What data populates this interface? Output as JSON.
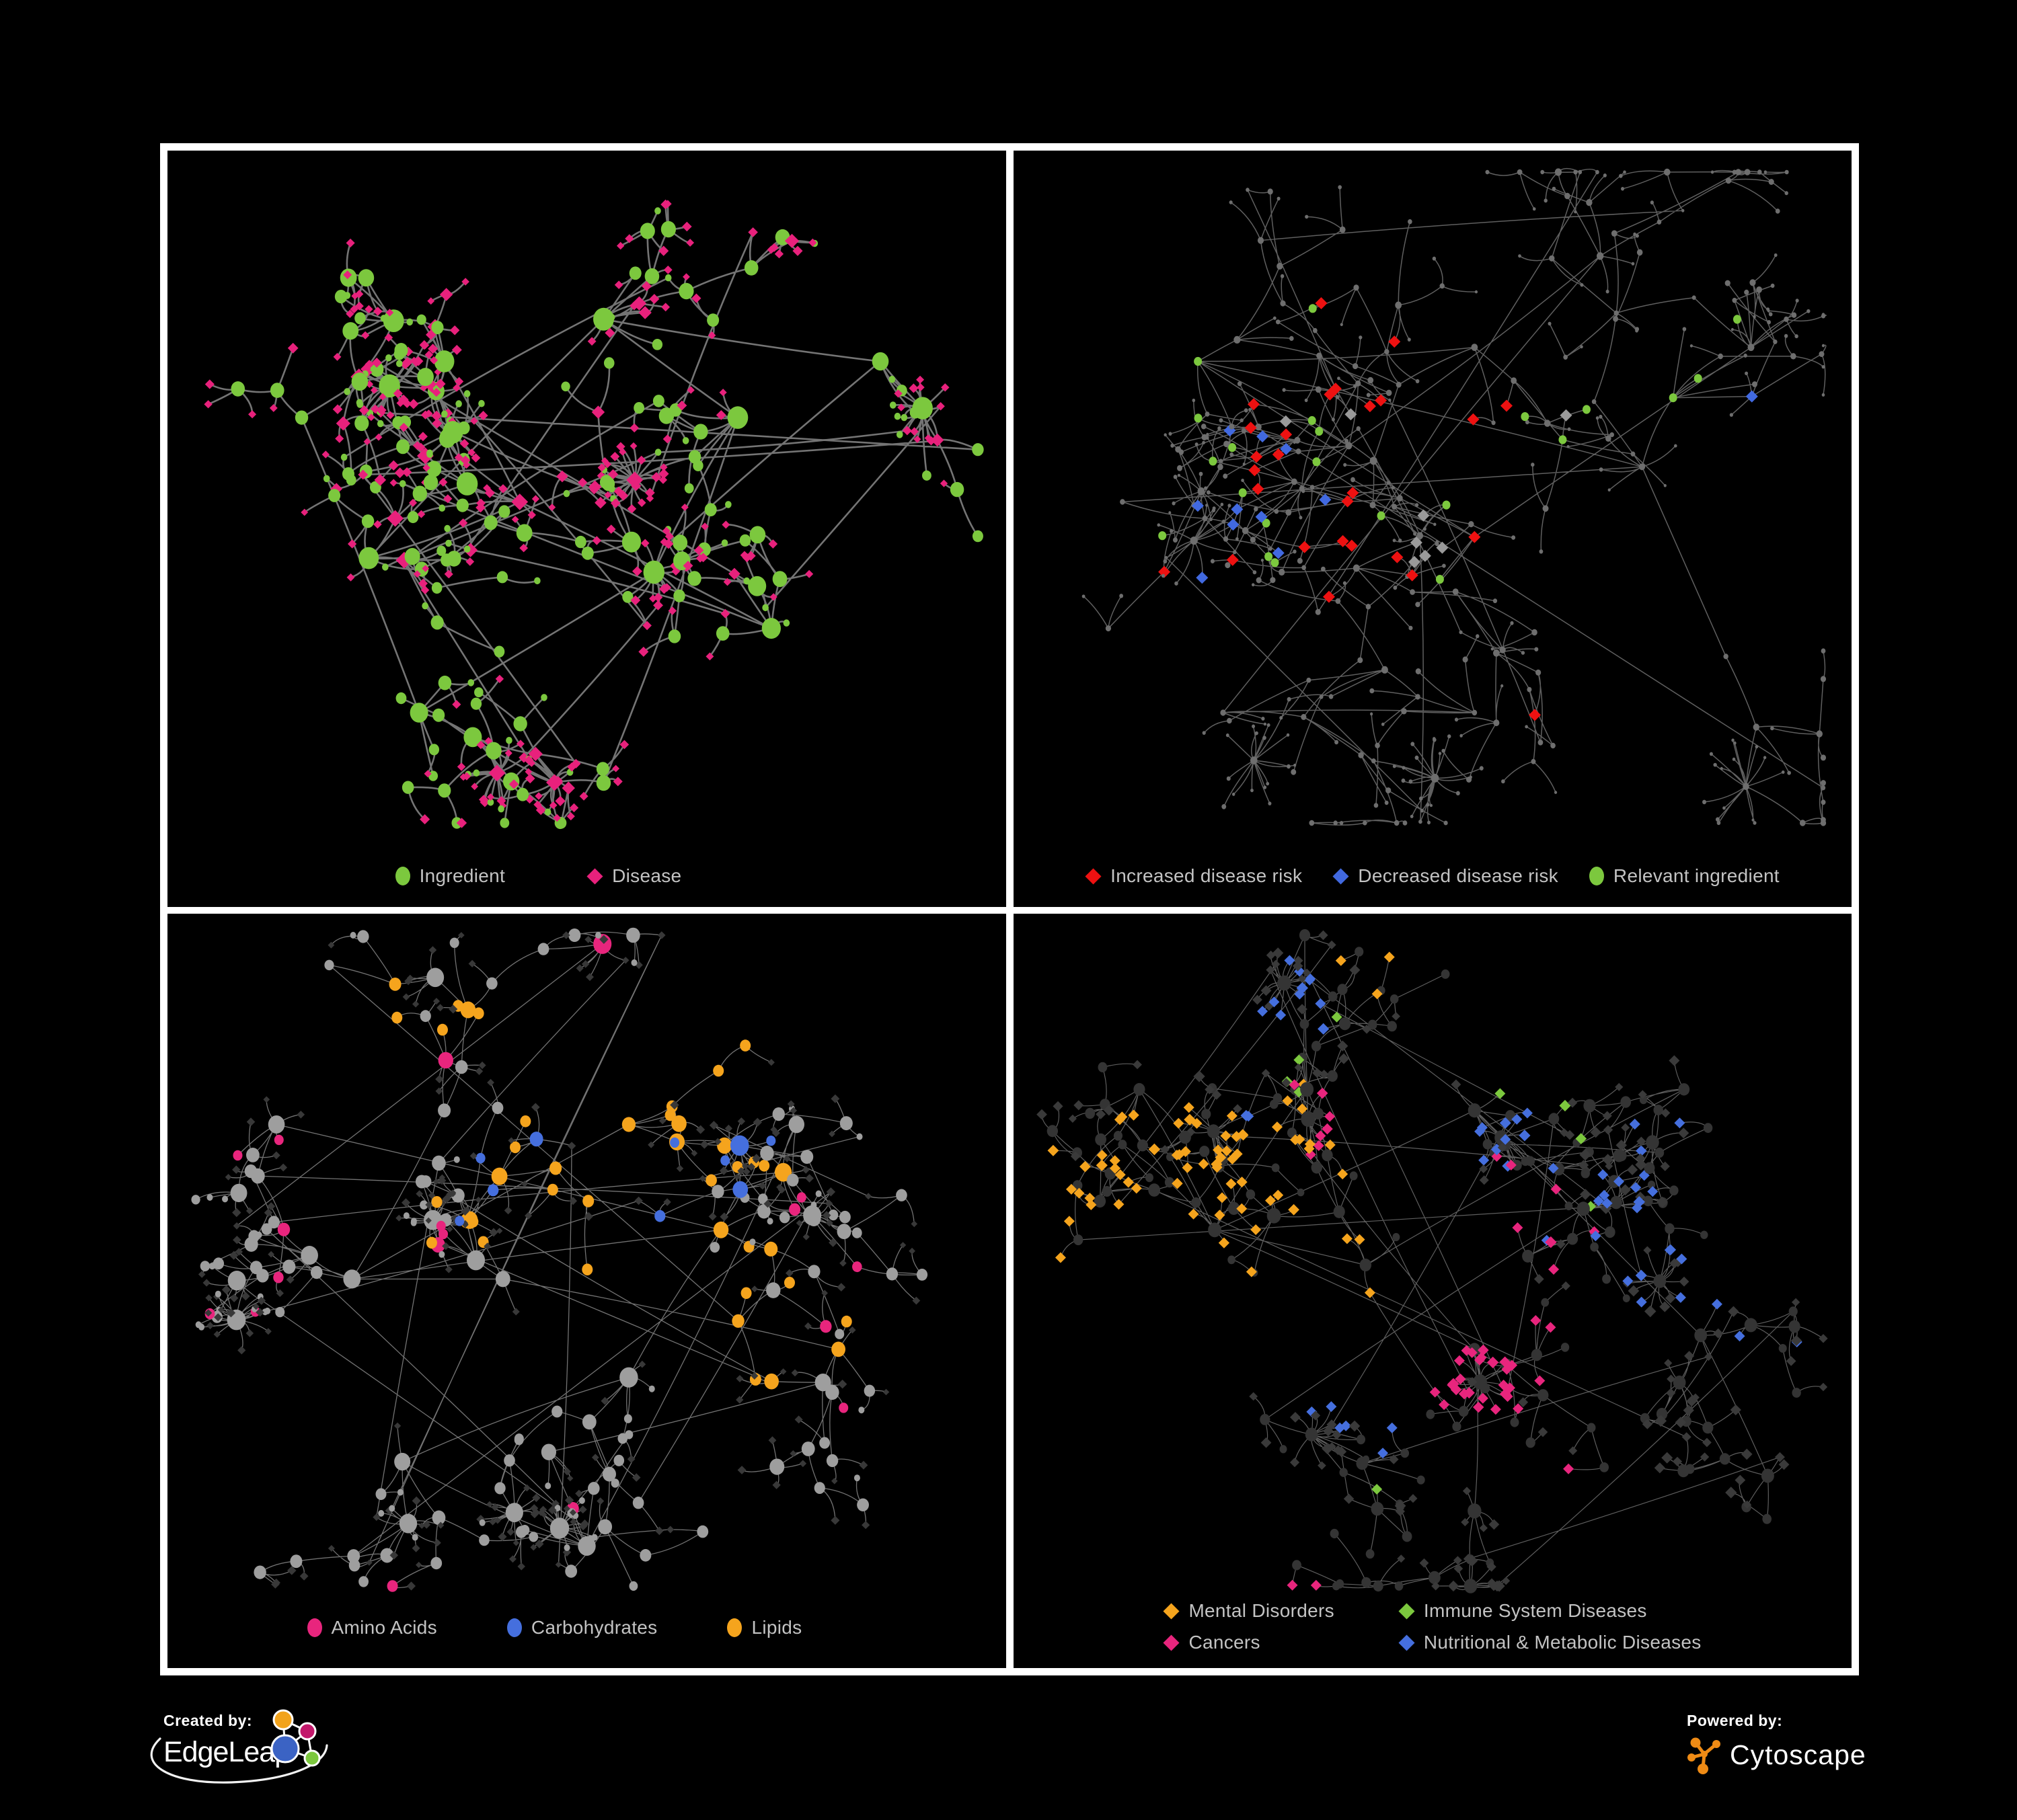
{
  "page": {
    "background": "#000000",
    "frame_border": "#ffffff"
  },
  "footer": {
    "created_label": "Created by:",
    "created_brand": "EdgeLeap",
    "powered_label": "Powered by:",
    "powered_brand": "Cytoscape",
    "cytoscape_orange": "#EF8B15",
    "edgeleap_logo_colors": {
      "orange": "#F2A31C",
      "magenta": "#C2186B",
      "blue": "#3B63C4",
      "green": "#7CC83E",
      "stroke": "#ffffff"
    }
  },
  "panels": [
    {
      "name": "ingredient-disease-network",
      "legend": {
        "items": [
          {
            "icon": "ellipse",
            "color": "#7CC83E",
            "label": "Ingredient"
          },
          {
            "icon": "diamond",
            "color": "#E8217C",
            "label": "Disease"
          }
        ]
      },
      "network": {
        "seed": 11,
        "step": 62,
        "leafStep": 30,
        "hubFrac": 0.3,
        "extra": 22,
        "edgeColor": "#7a7a7a",
        "edgeWidth": 2.6,
        "edgeOpacity": 0.95,
        "hub": {
          "shape": "circle",
          "color": "#7CC83E",
          "rMin": 5.5,
          "rK": 1.1,
          "diamondFrac": 0.16
        },
        "leaf": {
          "shape": "diamond",
          "color": "#E8217C",
          "size": 6.2,
          "circleFrac": 0.22,
          "circleColor": "#7CC83E",
          "circleSize": 4.8
        },
        "hubDiamondColor": "#E8217C",
        "clusters": [
          [
            0.42,
            0.5,
            70,
            1
          ],
          [
            0.24,
            0.58,
            55,
            1
          ],
          [
            0.33,
            0.3,
            45,
            0
          ],
          [
            0.52,
            0.24,
            40,
            0
          ],
          [
            0.68,
            0.38,
            45,
            1
          ],
          [
            0.58,
            0.6,
            40,
            1
          ],
          [
            0.3,
            0.8,
            40,
            1
          ],
          [
            0.52,
            0.9,
            35,
            1
          ],
          [
            0.72,
            0.68,
            35,
            0
          ],
          [
            0.16,
            0.38,
            25,
            0
          ],
          [
            0.85,
            0.3,
            25,
            1
          ]
        ],
        "specials": []
      }
    },
    {
      "name": "disease-risk-network",
      "legend": {
        "items": [
          {
            "icon": "diamond",
            "color": "#EE1111",
            "label": "Increased disease risk"
          },
          {
            "icon": "diamond",
            "color": "#4169E0",
            "label": "Decreased disease risk"
          },
          {
            "icon": "ellipse",
            "color": "#7CC83E",
            "label": "Relevant ingredient"
          }
        ]
      },
      "network": {
        "seed": 22,
        "step": 78,
        "leafStep": 40,
        "hubFrac": 0.45,
        "extra": 12,
        "edgeColor": "#5f5f5f",
        "edgeWidth": 1.5,
        "edgeOpacity": 1,
        "hub": {
          "shape": "circle",
          "color": "#6e6e6e",
          "rMin": 2.4,
          "rK": 0.25,
          "diamondFrac": 0
        },
        "leaf": {
          "shape": "circle",
          "color": "#6e6e6e",
          "size": 2.4,
          "circleFrac": 0,
          "circleColor": "#6e6e6e",
          "circleSize": 2.4
        },
        "hubDiamondColor": "#6e6e6e",
        "clusters": [
          [
            0.4,
            0.42,
            60,
            0
          ],
          [
            0.22,
            0.3,
            45,
            0
          ],
          [
            0.55,
            0.28,
            45,
            0
          ],
          [
            0.7,
            0.15,
            35,
            0
          ],
          [
            0.32,
            0.6,
            40,
            0
          ],
          [
            0.55,
            0.55,
            45,
            1
          ],
          [
            0.75,
            0.45,
            35,
            0
          ],
          [
            0.25,
            0.8,
            35,
            1
          ],
          [
            0.55,
            0.8,
            40,
            1
          ],
          [
            0.85,
            0.72,
            30,
            1
          ],
          [
            0.88,
            0.28,
            25,
            0
          ],
          [
            0.13,
            0.5,
            20,
            0
          ]
        ],
        "specials": [
          {
            "shape": "diamond",
            "color": "#EE1111",
            "size": 9,
            "count": 27,
            "foci": [
              [
                0.42,
                0.44,
                0.16
              ],
              [
                0.6,
                0.5,
                0.13
              ],
              [
                0.7,
                0.82,
                0.05
              ],
              [
                0.36,
                0.55,
                0.1
              ],
              [
                0.77,
                0.87,
                0.04
              ]
            ]
          },
          {
            "shape": "diamond",
            "color": "#4169E0",
            "size": 9,
            "count": 11,
            "foci": [
              [
                0.28,
                0.5,
                0.07
              ],
              [
                0.3,
                0.4,
                0.05
              ],
              [
                0.91,
                0.36,
                0.035
              ]
            ]
          },
          {
            "shape": "diamond",
            "color": "#9a9a9a",
            "size": 9,
            "count": 8,
            "foci": [
              [
                0.33,
                0.44,
                0.08
              ],
              [
                0.52,
                0.62,
                0.1
              ],
              [
                0.6,
                0.42,
                0.06
              ]
            ]
          },
          {
            "shape": "circle",
            "color": "#7CC83E",
            "size": 6,
            "count": 22,
            "foci": [
              [
                0.35,
                0.48,
                0.2
              ],
              [
                0.6,
                0.5,
                0.18
              ],
              [
                0.13,
                0.6,
                0.04
              ],
              [
                0.3,
                0.88,
                0.05
              ]
            ]
          }
        ]
      }
    },
    {
      "name": "nutrient-class-network",
      "legend": {
        "items": [
          {
            "icon": "ellipse",
            "color": "#E8257D",
            "label": "Amino Acids"
          },
          {
            "icon": "ellipse",
            "color": "#456FDE",
            "label": "Carbohydrates"
          },
          {
            "icon": "ellipse",
            "color": "#F5A41D",
            "label": "Lipids"
          }
        ]
      },
      "network": {
        "seed": 33,
        "step": 60,
        "leafStep": 30,
        "hubFrac": 0.34,
        "extra": 20,
        "edgeColor": "#989898",
        "edgeWidth": 1.3,
        "edgeOpacity": 0.75,
        "hub": {
          "shape": "circle",
          "color": "#9e9e9e",
          "rMin": 5.0,
          "rK": 1.0,
          "diamondFrac": 0
        },
        "leaf": {
          "shape": "diamond",
          "color": "#383838",
          "size": 5.4,
          "circleFrac": 0.18,
          "circleColor": "#9e9e9e",
          "circleSize": 4.5
        },
        "hubDiamondColor": "#383838",
        "clusters": [
          [
            0.4,
            0.52,
            65,
            1
          ],
          [
            0.22,
            0.52,
            50,
            1
          ],
          [
            0.33,
            0.28,
            45,
            0
          ],
          [
            0.55,
            0.3,
            50,
            1
          ],
          [
            0.66,
            0.45,
            40,
            0
          ],
          [
            0.55,
            0.66,
            40,
            1
          ],
          [
            0.28,
            0.78,
            40,
            1
          ],
          [
            0.5,
            0.9,
            35,
            1
          ],
          [
            0.75,
            0.3,
            30,
            0
          ],
          [
            0.8,
            0.62,
            30,
            0
          ],
          [
            0.13,
            0.3,
            20,
            0
          ]
        ],
        "specials": [
          {
            "applyTo": "circle",
            "shape": "circle",
            "color": "#F5A41D",
            "size": 8,
            "count": 42,
            "foci": [
              [
                0.57,
                0.3,
                0.12
              ],
              [
                0.48,
                0.38,
                0.1
              ],
              [
                0.5,
                0.55,
                0.05
              ],
              [
                0.33,
                0.17,
                0.06
              ],
              [
                0.6,
                0.13,
                0.05
              ],
              [
                0.7,
                0.6,
                0.06
              ],
              [
                0.25,
                0.63,
                0.04
              ]
            ]
          },
          {
            "applyTo": "circle",
            "shape": "circle",
            "color": "#456FDE",
            "size": 7,
            "count": 12,
            "foci": [
              [
                0.55,
                0.33,
                0.07
              ],
              [
                0.45,
                0.4,
                0.05
              ],
              [
                0.05,
                0.25,
                0.03
              ]
            ]
          },
          {
            "applyTo": "circle",
            "shape": "circle",
            "color": "#E8257D",
            "size": 7,
            "count": 18,
            "foci": [
              [
                0.5,
                0.5,
                0.45
              ]
            ]
          }
        ]
      }
    },
    {
      "name": "disease-category-network",
      "legend": {
        "items": [
          {
            "icon": "diamond",
            "color": "#F5A41D",
            "label": "Mental Disorders"
          },
          {
            "icon": "diamond",
            "color": "#7CC83E",
            "label": "Immune System Diseases"
          },
          {
            "icon": "diamond",
            "color": "#E8257D",
            "label": "Cancers"
          },
          {
            "icon": "diamond",
            "color": "#456FDE",
            "label": "Nutritional & Metabolic Diseases"
          }
        ]
      },
      "network": {
        "seed": 44,
        "step": 58,
        "leafStep": 30,
        "hubFrac": 0.3,
        "extra": 24,
        "edgeColor": "#6e6e6e",
        "edgeWidth": 1.2,
        "edgeOpacity": 0.85,
        "hub": {
          "shape": "circle",
          "color": "#343434",
          "rMin": 4.5,
          "rK": 0.6,
          "diamondFrac": 0
        },
        "leaf": {
          "shape": "diamond",
          "color": "#3a3a3a",
          "size": 7,
          "circleFrac": 0,
          "circleColor": "#343434",
          "circleSize": 4.5
        },
        "hubDiamondColor": "#3a3a3a",
        "clusters": [
          [
            0.42,
            0.5,
            65,
            1
          ],
          [
            0.24,
            0.45,
            55,
            1
          ],
          [
            0.35,
            0.25,
            45,
            1
          ],
          [
            0.55,
            0.28,
            45,
            0
          ],
          [
            0.68,
            0.42,
            45,
            1
          ],
          [
            0.55,
            0.62,
            45,
            1
          ],
          [
            0.3,
            0.72,
            40,
            1
          ],
          [
            0.55,
            0.85,
            35,
            1
          ],
          [
            0.8,
            0.25,
            35,
            0
          ],
          [
            0.82,
            0.6,
            30,
            0
          ],
          [
            0.15,
            0.25,
            25,
            0
          ],
          [
            0.9,
            0.8,
            20,
            0
          ]
        ],
        "specials": [
          {
            "applyTo": "diamond",
            "shape": "diamond",
            "color": "#F5A41D",
            "size": 8,
            "count": 70,
            "foci": [
              [
                0.22,
                0.46,
                0.13
              ],
              [
                0.3,
                0.52,
                0.08
              ],
              [
                0.17,
                0.12,
                0.04
              ],
              [
                0.47,
                0.08,
                0.04
              ]
            ]
          },
          {
            "applyTo": "diamond",
            "shape": "diamond",
            "color": "#E8257D",
            "size": 8,
            "count": 48,
            "foci": [
              [
                0.47,
                0.52,
                0.1
              ],
              [
                0.56,
                0.6,
                0.09
              ],
              [
                0.4,
                0.35,
                0.06
              ],
              [
                0.93,
                0.25,
                0.05
              ],
              [
                0.35,
                0.92,
                0.04
              ],
              [
                0.65,
                0.85,
                0.04
              ]
            ]
          },
          {
            "applyTo": "diamond",
            "shape": "diamond",
            "color": "#456FDE",
            "size": 8,
            "count": 55,
            "foci": [
              [
                0.74,
                0.42,
                0.1
              ],
              [
                0.6,
                0.3,
                0.06
              ],
              [
                0.33,
                0.12,
                0.06
              ],
              [
                0.86,
                0.17,
                0.07
              ],
              [
                0.7,
                0.07,
                0.05
              ],
              [
                0.42,
                0.7,
                0.04
              ],
              [
                0.9,
                0.55,
                0.05
              ],
              [
                0.25,
                0.32,
                0.05
              ]
            ]
          },
          {
            "applyTo": "diamond",
            "shape": "diamond",
            "color": "#7CC83E",
            "size": 8,
            "count": 9,
            "foci": [
              [
                0.45,
                0.4,
                0.3
              ]
            ]
          }
        ]
      }
    }
  ]
}
